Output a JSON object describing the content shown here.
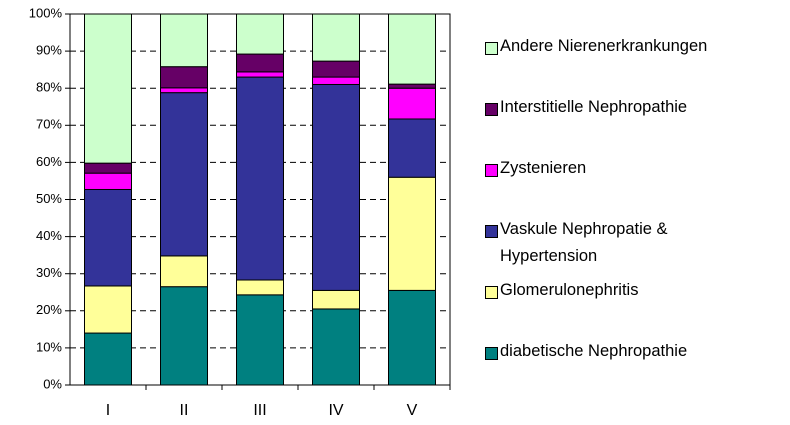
{
  "chart_data": {
    "type": "stacked_bar",
    "categories": [
      "I",
      "II",
      "III",
      "IV",
      "V"
    ],
    "series": [
      {
        "name": "diabetische Nephropathie",
        "color": "#008080",
        "values": [
          14,
          26.5,
          24.3,
          20.5,
          25.5
        ]
      },
      {
        "name": "Glomerulonephritis",
        "color": "#ffff99",
        "values": [
          12.7,
          8.3,
          4,
          5,
          30.5
        ]
      },
      {
        "name": "Vaskule Nephropatie & Hypertension",
        "color": "#333399",
        "values": [
          26,
          44,
          54.7,
          55.5,
          15.7
        ]
      },
      {
        "name": "Zystenieren",
        "color": "#ff00ff",
        "values": [
          4.4,
          1.3,
          1.4,
          2,
          8.3
        ]
      },
      {
        "name": "Interstitielle Nephropathie",
        "color": "#660066",
        "values": [
          2.7,
          5.7,
          4.8,
          4.3,
          1.1
        ]
      },
      {
        "name": "Andere Nierenerkrankungen",
        "color": "#ccffcc",
        "values": [
          40.2,
          14.2,
          10.8,
          12.7,
          18.9
        ]
      }
    ],
    "ylim": [
      0,
      100
    ],
    "yticks": [
      {
        "value": 0,
        "label": "0%"
      },
      {
        "value": 10,
        "label": "10%"
      },
      {
        "value": 20,
        "label": "20%"
      },
      {
        "value": 30,
        "label": "30%"
      },
      {
        "value": 40,
        "label": "40%"
      },
      {
        "value": 50,
        "label": "50%"
      },
      {
        "value": 60,
        "label": "60%"
      },
      {
        "value": 70,
        "label": "70%"
      },
      {
        "value": 80,
        "label": "80%"
      },
      {
        "value": 90,
        "label": "90%"
      },
      {
        "value": 100,
        "label": "100%"
      }
    ],
    "grid": true,
    "legend": "right"
  }
}
